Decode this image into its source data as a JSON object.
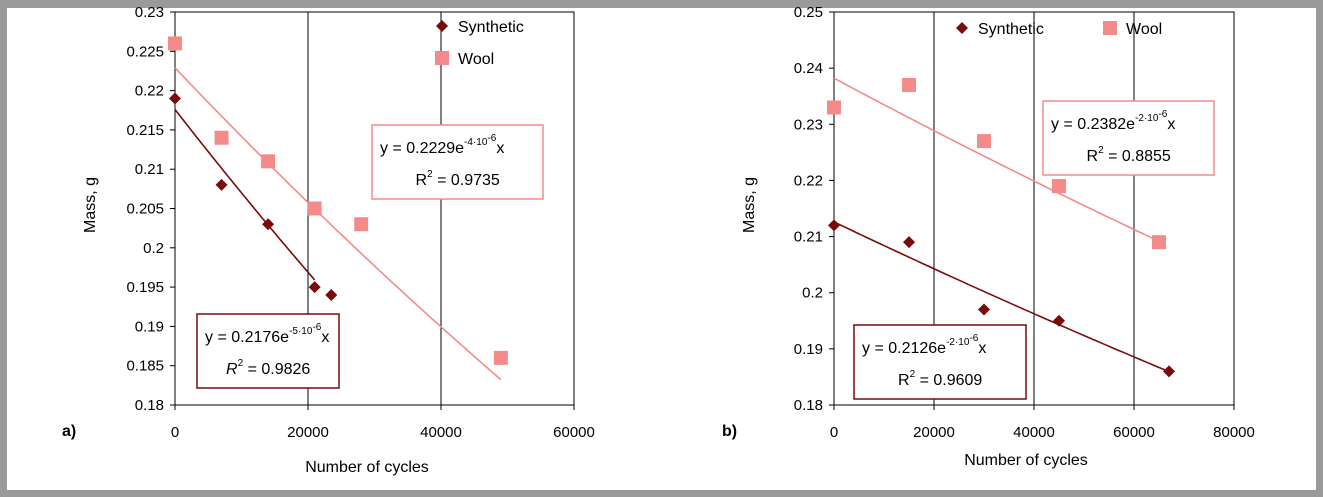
{
  "chart_data": [
    {
      "panel_label": "a)",
      "type": "scatter",
      "xlabel": "Number of cycles",
      "ylabel": "Mass, g",
      "xlim": [
        0,
        60000
      ],
      "ylim": [
        0.18,
        0.23
      ],
      "x_ticks": [
        "0",
        "20000",
        "40000",
        "60000"
      ],
      "y_ticks": [
        "0.18",
        "0.185",
        "0.19",
        "0.195",
        "0.2",
        "0.205",
        "0.21",
        "0.215",
        "0.22",
        "0.225",
        "0.23"
      ],
      "grid": "vertical-major",
      "legend_position": "top-right",
      "series": [
        {
          "name": "Synthetic",
          "marker": "diamond",
          "color": "#7b0a0a",
          "x": [
            0,
            7000,
            14000,
            21000,
            23500
          ],
          "y": [
            0.219,
            0.208,
            0.203,
            0.195,
            0.194
          ],
          "trendline": {
            "type": "exponential",
            "a": 0.2176,
            "b": -5e-06,
            "x_range": [
              0,
              21000
            ]
          },
          "equation": {
            "y": "y = 0.2176e",
            "exp": "-5·10",
            "exp2": "-6",
            "x": "x",
            "r2_prefix": "R",
            "r2_sup": "2",
            "r2_value": " = 0.9826"
          }
        },
        {
          "name": "Wool",
          "marker": "square",
          "color": "#f48a8a",
          "x": [
            0,
            7000,
            14000,
            21000,
            28000,
            49000
          ],
          "y": [
            0.226,
            0.214,
            0.211,
            0.205,
            0.203,
            0.186
          ],
          "trendline": {
            "type": "exponential",
            "a": 0.2229,
            "b": -4e-06,
            "x_range": [
              0,
              49000
            ]
          },
          "equation": {
            "y": "y = 0.2229e",
            "exp": "-4·10",
            "exp2": "-6",
            "x": "x",
            "r2_prefix": "R",
            "r2_sup": "2",
            "r2_value": " = 0.9735"
          }
        }
      ]
    },
    {
      "panel_label": "b)",
      "type": "scatter",
      "xlabel": "Number of cycles",
      "ylabel": "Mass, g",
      "xlim": [
        0,
        80000
      ],
      "ylim": [
        0.18,
        0.25
      ],
      "x_ticks": [
        "0",
        "20000",
        "40000",
        "60000",
        "80000"
      ],
      "y_ticks": [
        "0.18",
        "0.19",
        "0.2",
        "0.21",
        "0.22",
        "0.23",
        "0.24",
        "0.25"
      ],
      "grid": "vertical-major",
      "legend_position": "top-center",
      "series": [
        {
          "name": "Synthetic",
          "marker": "diamond",
          "color": "#7b0a0a",
          "x": [
            0,
            15000,
            30000,
            45000,
            67000
          ],
          "y": [
            0.212,
            0.209,
            0.197,
            0.195,
            0.186
          ],
          "trendline": {
            "type": "exponential",
            "a": 0.2126,
            "b": -2e-06,
            "x_range": [
              0,
              67000
            ]
          },
          "equation": {
            "y": "y = 0.2126e",
            "exp": "-2·10",
            "exp2": "-6",
            "x": "x",
            "r2_prefix": "R",
            "r2_sup": "2",
            "r2_value": " = 0.9609"
          }
        },
        {
          "name": "Wool",
          "marker": "square",
          "color": "#f48a8a",
          "x": [
            0,
            15000,
            30000,
            45000,
            65000
          ],
          "y": [
            0.233,
            0.237,
            0.227,
            0.219,
            0.209
          ],
          "trendline": {
            "type": "exponential",
            "a": 0.2382,
            "b": -2e-06,
            "x_range": [
              0,
              65000
            ]
          },
          "equation": {
            "y": "y = 0.2382e",
            "exp": "-2·10",
            "exp2": "-6",
            "x": "x",
            "r2_prefix": "R",
            "r2_sup": "2",
            "r2_value": " = 0.8855"
          }
        }
      ]
    }
  ]
}
